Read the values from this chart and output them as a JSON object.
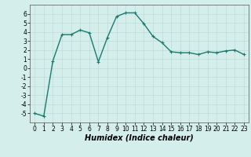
{
  "x": [
    0,
    1,
    2,
    3,
    4,
    5,
    6,
    7,
    8,
    9,
    10,
    11,
    12,
    13,
    14,
    15,
    16,
    17,
    18,
    19,
    20,
    21,
    22,
    23
  ],
  "y": [
    -5.0,
    -5.3,
    0.8,
    3.7,
    3.7,
    4.2,
    3.9,
    0.7,
    3.4,
    5.7,
    6.1,
    6.1,
    4.9,
    3.5,
    2.8,
    1.8,
    1.7,
    1.7,
    1.5,
    1.8,
    1.7,
    1.9,
    2.0,
    1.5
  ],
  "line_color": "#1a7a6e",
  "marker": "+",
  "marker_size": 3,
  "linewidth": 1.0,
  "xlabel": "Humidex (Indice chaleur)",
  "xlabel_fontsize": 7,
  "xlabel_style": "italic",
  "ylim": [
    -6,
    7
  ],
  "xlim": [
    -0.5,
    23.5
  ],
  "yticks": [
    -5,
    -4,
    -3,
    -2,
    -1,
    0,
    1,
    2,
    3,
    4,
    5,
    6
  ],
  "xticks": [
    0,
    1,
    2,
    3,
    4,
    5,
    6,
    7,
    8,
    9,
    10,
    11,
    12,
    13,
    14,
    15,
    16,
    17,
    18,
    19,
    20,
    21,
    22,
    23
  ],
  "background_color": "#d4eeec",
  "grid_color": "#c0dbd8",
  "tick_fontsize": 5.5
}
